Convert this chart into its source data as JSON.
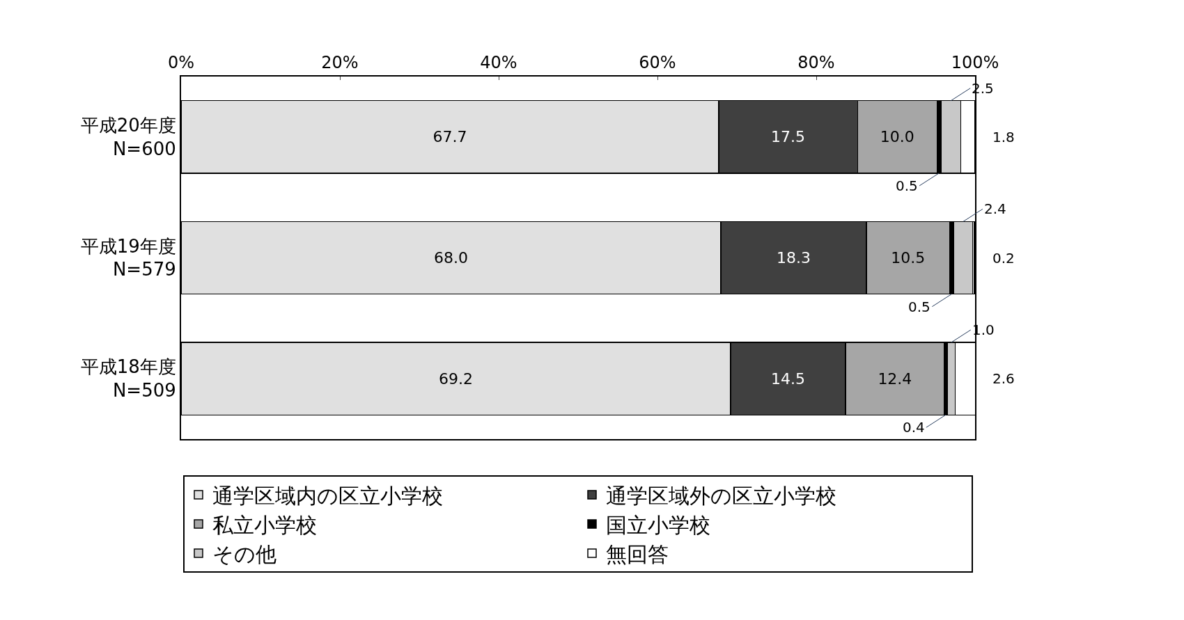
{
  "chart_data": {
    "type": "bar",
    "orientation": "horizontal",
    "stacked": true,
    "legend": "bottom",
    "categories": [
      "平成20年度\nN=600",
      "平成19年度\nN=579",
      "平成18年度\nN=509"
    ],
    "xlim": [
      0,
      100
    ],
    "xticks": [
      {
        "value": 0,
        "label": "0%"
      },
      {
        "value": 20,
        "label": "20%"
      },
      {
        "value": 40,
        "label": "40%"
      },
      {
        "value": 60,
        "label": "60%"
      },
      {
        "value": 80,
        "label": "80%"
      },
      {
        "value": 100,
        "label": "100%"
      }
    ],
    "series": [
      {
        "name": "通学区域内の区立小学校",
        "color": "#e0e0e0",
        "values": [
          67.7,
          68.0,
          69.2
        ],
        "value_labels": [
          "67.7",
          "68.0",
          "69.2"
        ]
      },
      {
        "name": "通学区域外の区立小学校",
        "color": "#404040",
        "values": [
          17.5,
          18.3,
          14.5
        ],
        "value_labels": [
          "17.5",
          "18.3",
          "14.5"
        ]
      },
      {
        "name": "私立小学校",
        "color": "#a6a6a6",
        "values": [
          10.0,
          10.5,
          12.4
        ],
        "value_labels": [
          "10.0",
          "10.5",
          "12.4"
        ]
      },
      {
        "name": "国立小学校",
        "color": "#000000",
        "values": [
          0.5,
          0.5,
          0.4
        ],
        "value_labels": [
          "0.5",
          "0.5",
          "0.4"
        ]
      },
      {
        "name": "その他",
        "color": "#c8c8c8",
        "values": [
          2.5,
          2.4,
          1.0
        ],
        "value_labels": [
          "2.5",
          "2.4",
          "1.0"
        ]
      },
      {
        "name": "無回答",
        "color": "#ffffff",
        "values": [
          1.8,
          0.2,
          2.6
        ],
        "value_labels": [
          "1.8",
          "0.2",
          "2.6"
        ]
      }
    ]
  }
}
